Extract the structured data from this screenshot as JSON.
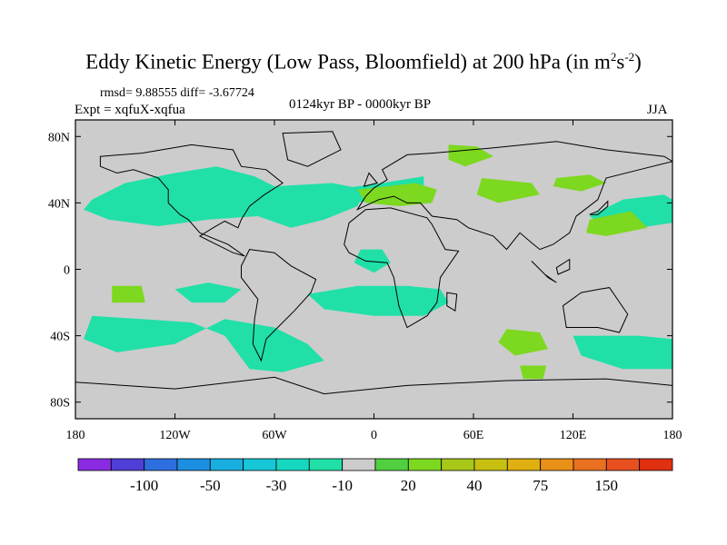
{
  "chart_data": {
    "type": "heatmap",
    "title_main": "Eddy Kinetic Energy (Low Pass, Bloomfield) at 200 hPa (in m",
    "title_sup1": "2",
    "title_s": "s",
    "title_sup2": "-2",
    "title_close": ")",
    "stats": "rmsd= 9.88555 diff= -3.67724",
    "experiment": "Expt = xqfuX-xqfua",
    "period": "0124kyr BP - 0000kyr BP",
    "season": "JJA",
    "x_ticks": [
      "180",
      "120W",
      "60W",
      "0",
      "60E",
      "120E",
      "180"
    ],
    "x_tick_values": [
      -180,
      -120,
      -60,
      0,
      60,
      120,
      180
    ],
    "y_ticks": [
      "80N",
      "40N",
      "0",
      "40S",
      "80S"
    ],
    "y_tick_values": [
      80,
      40,
      0,
      -40,
      -80
    ],
    "xlim": [
      -180,
      180
    ],
    "ylim": [
      -90,
      90
    ],
    "colorbar": {
      "labels": [
        "-100",
        "-50",
        "-30",
        "-10",
        "20",
        "40",
        "75",
        "150"
      ],
      "label_box_index": [
        2,
        4,
        6,
        8,
        10,
        12,
        14,
        16
      ],
      "colors": [
        "#8a2be2",
        "#4f3fd6",
        "#2e6fe0",
        "#1d8fe0",
        "#18aee0",
        "#16c7d8",
        "#16d8c0",
        "#20e0a8",
        "#cccccc",
        "#50d040",
        "#7dd820",
        "#a8c818",
        "#c8c010",
        "#e0b010",
        "#e89018",
        "#e87020",
        "#e85020",
        "#e03010"
      ]
    },
    "regions": [
      {
        "level": "-10",
        "color": "#20e0a8",
        "points": [
          [
            -170,
            42
          ],
          [
            -150,
            52
          ],
          [
            -120,
            58
          ],
          [
            -95,
            62
          ],
          [
            -72,
            56
          ],
          [
            -60,
            50
          ],
          [
            -25,
            52
          ],
          [
            -5,
            48
          ],
          [
            -10,
            38
          ],
          [
            -30,
            30
          ],
          [
            -50,
            25
          ],
          [
            -70,
            32
          ],
          [
            -100,
            30
          ],
          [
            -130,
            26
          ],
          [
            -160,
            30
          ],
          [
            -175,
            36
          ]
        ]
      },
      {
        "level": "-10",
        "color": "#20e0a8",
        "points": [
          [
            -25,
            48
          ],
          [
            5,
            52
          ],
          [
            30,
            56
          ],
          [
            30,
            47
          ],
          [
            10,
            42
          ],
          [
            -15,
            40
          ]
        ]
      },
      {
        "level": "-10",
        "color": "#20e0a8",
        "points": [
          [
            130,
            32
          ],
          [
            150,
            42
          ],
          [
            175,
            45
          ],
          [
            180,
            42
          ],
          [
            180,
            28
          ],
          [
            160,
            25
          ],
          [
            140,
            25
          ]
        ]
      },
      {
        "level": "-10",
        "color": "#20e0a8",
        "points": [
          [
            -120,
            -12
          ],
          [
            -100,
            -8
          ],
          [
            -80,
            -12
          ],
          [
            -90,
            -20
          ],
          [
            -110,
            -20
          ]
        ]
      },
      {
        "level": "-10",
        "color": "#20e0a8",
        "points": [
          [
            -40,
            -15
          ],
          [
            -10,
            -10
          ],
          [
            20,
            -10
          ],
          [
            40,
            -12
          ],
          [
            45,
            -20
          ],
          [
            30,
            -28
          ],
          [
            0,
            -28
          ],
          [
            -30,
            -24
          ]
        ]
      },
      {
        "level": "-10",
        "color": "#20e0a8",
        "points": [
          [
            -170,
            -28
          ],
          [
            -140,
            -30
          ],
          [
            -110,
            -32
          ],
          [
            -90,
            -40
          ],
          [
            -75,
            -60
          ],
          [
            -55,
            -62
          ],
          [
            -30,
            -55
          ],
          [
            -40,
            -45
          ],
          [
            -60,
            -35
          ],
          [
            -90,
            -30
          ],
          [
            -120,
            -45
          ],
          [
            -155,
            -50
          ],
          [
            -175,
            -42
          ]
        ]
      },
      {
        "level": "-10",
        "color": "#20e0a8",
        "points": [
          [
            120,
            -40
          ],
          [
            160,
            -40
          ],
          [
            180,
            -42
          ],
          [
            180,
            -60
          ],
          [
            150,
            -60
          ],
          [
            125,
            -52
          ]
        ]
      },
      {
        "level": "-10",
        "color": "#20e0a8",
        "points": [
          [
            -8,
            12
          ],
          [
            5,
            12
          ],
          [
            10,
            4
          ],
          [
            0,
            -2
          ],
          [
            -12,
            4
          ]
        ]
      },
      {
        "level": "20",
        "color": "#7dd820",
        "points": [
          [
            -10,
            48
          ],
          [
            8,
            50
          ],
          [
            25,
            52
          ],
          [
            38,
            48
          ],
          [
            35,
            40
          ],
          [
            15,
            38
          ],
          [
            -5,
            40
          ]
        ]
      },
      {
        "level": "20",
        "color": "#7dd820",
        "points": [
          [
            45,
            75
          ],
          [
            62,
            74
          ],
          [
            72,
            68
          ],
          [
            55,
            62
          ],
          [
            45,
            66
          ]
        ]
      },
      {
        "level": "20",
        "color": "#7dd820",
        "points": [
          [
            65,
            55
          ],
          [
            95,
            52
          ],
          [
            100,
            45
          ],
          [
            75,
            40
          ],
          [
            62,
            45
          ]
        ]
      },
      {
        "level": "20",
        "color": "#7dd820",
        "points": [
          [
            110,
            55
          ],
          [
            130,
            57
          ],
          [
            140,
            52
          ],
          [
            125,
            47
          ],
          [
            108,
            50
          ]
        ]
      },
      {
        "level": "20",
        "color": "#7dd820",
        "points": [
          [
            130,
            30
          ],
          [
            155,
            35
          ],
          [
            165,
            25
          ],
          [
            140,
            20
          ],
          [
            128,
            22
          ]
        ]
      },
      {
        "level": "20",
        "color": "#7dd820",
        "points": [
          [
            80,
            -36
          ],
          [
            100,
            -38
          ],
          [
            105,
            -48
          ],
          [
            85,
            -52
          ],
          [
            75,
            -44
          ]
        ]
      },
      {
        "level": "20",
        "color": "#7dd820",
        "points": [
          [
            -158,
            -10
          ],
          [
            -140,
            -10
          ],
          [
            -138,
            -20
          ],
          [
            -158,
            -20
          ]
        ]
      },
      {
        "level": "20",
        "color": "#7dd820",
        "points": [
          [
            88,
            -58
          ],
          [
            104,
            -58
          ],
          [
            102,
            -66
          ],
          [
            90,
            -66
          ]
        ]
      }
    ],
    "continents": [
      [
        [
          -165,
          68
        ],
        [
          -140,
          70
        ],
        [
          -110,
          75
        ],
        [
          -85,
          72
        ],
        [
          -80,
          62
        ],
        [
          -65,
          60
        ],
        [
          -55,
          52
        ],
        [
          -66,
          45
        ],
        [
          -75,
          38
        ],
        [
          -80,
          30
        ],
        [
          -82,
          25
        ],
        [
          -90,
          29
        ],
        [
          -97,
          25
        ],
        [
          -105,
          20
        ],
        [
          -95,
          15
        ],
        [
          -85,
          10
        ],
        [
          -78,
          8
        ],
        [
          -88,
          15
        ],
        [
          -105,
          22
        ],
        [
          -112,
          30
        ],
        [
          -117,
          33
        ],
        [
          -124,
          40
        ],
        [
          -124,
          48
        ],
        [
          -130,
          55
        ],
        [
          -145,
          60
        ],
        [
          -155,
          58
        ],
        [
          -160,
          60
        ],
        [
          -165,
          62
        ]
      ],
      [
        [
          -75,
          12
        ],
        [
          -60,
          10
        ],
        [
          -50,
          2
        ],
        [
          -35,
          -6
        ],
        [
          -38,
          -14
        ],
        [
          -48,
          -25
        ],
        [
          -58,
          -35
        ],
        [
          -65,
          -42
        ],
        [
          -68,
          -55
        ],
        [
          -73,
          -45
        ],
        [
          -72,
          -30
        ],
        [
          -70,
          -18
        ],
        [
          -80,
          -5
        ],
        [
          -80,
          2
        ]
      ],
      [
        [
          -18,
          15
        ],
        [
          -15,
          28
        ],
        [
          -5,
          36
        ],
        [
          10,
          37
        ],
        [
          32,
          31
        ],
        [
          35,
          27
        ],
        [
          43,
          12
        ],
        [
          51,
          11
        ],
        [
          40,
          -5
        ],
        [
          38,
          -20
        ],
        [
          32,
          -28
        ],
        [
          20,
          -35
        ],
        [
          15,
          -22
        ],
        [
          12,
          -5
        ],
        [
          8,
          4
        ],
        [
          -5,
          5
        ],
        [
          -15,
          10
        ]
      ],
      [
        [
          -10,
          36
        ],
        [
          -5,
          44
        ],
        [
          0,
          49
        ],
        [
          8,
          54
        ],
        [
          5,
          60
        ],
        [
          20,
          69
        ],
        [
          35,
          70
        ],
        [
          70,
          73
        ],
        [
          110,
          77
        ],
        [
          140,
          72
        ],
        [
          175,
          68
        ],
        [
          180,
          65
        ],
        [
          160,
          60
        ],
        [
          140,
          55
        ],
        [
          135,
          42
        ],
        [
          122,
          32
        ],
        [
          118,
          22
        ],
        [
          108,
          15
        ],
        [
          100,
          12
        ],
        [
          95,
          16
        ],
        [
          88,
          22
        ],
        [
          80,
          12
        ],
        [
          72,
          20
        ],
        [
          57,
          25
        ],
        [
          50,
          30
        ],
        [
          35,
          32
        ],
        [
          28,
          40
        ],
        [
          20,
          40
        ],
        [
          12,
          44
        ],
        [
          3,
          42
        ]
      ],
      [
        [
          114,
          -22
        ],
        [
          125,
          -14
        ],
        [
          136,
          -12
        ],
        [
          142,
          -11
        ],
        [
          153,
          -27
        ],
        [
          148,
          -38
        ],
        [
          135,
          -35
        ],
        [
          116,
          -35
        ]
      ],
      [
        [
          -55,
          82
        ],
        [
          -25,
          83
        ],
        [
          -20,
          72
        ],
        [
          -40,
          62
        ],
        [
          -52,
          66
        ]
      ],
      [
        [
          -180,
          -68
        ],
        [
          -120,
          -72
        ],
        [
          -60,
          -65
        ],
        [
          -30,
          -75
        ],
        [
          20,
          -70
        ],
        [
          80,
          -67
        ],
        [
          140,
          -66
        ],
        [
          180,
          -70
        ],
        [
          180,
          -90
        ],
        [
          -180,
          -90
        ]
      ],
      [
        [
          130,
          33
        ],
        [
          135,
          35
        ],
        [
          141,
          41
        ],
        [
          141,
          38
        ],
        [
          135,
          33
        ]
      ],
      [
        [
          95,
          5
        ],
        [
          105,
          -5
        ],
        [
          110,
          -8
        ],
        [
          103,
          -3
        ]
      ],
      [
        [
          110,
          1
        ],
        [
          118,
          6
        ],
        [
          118,
          0
        ],
        [
          111,
          -3
        ]
      ],
      [
        [
          44,
          -14
        ],
        [
          50,
          -15
        ],
        [
          49,
          -25
        ],
        [
          44,
          -22
        ]
      ],
      [
        [
          -6,
          50
        ],
        [
          -3,
          58
        ],
        [
          2,
          52
        ]
      ]
    ]
  }
}
